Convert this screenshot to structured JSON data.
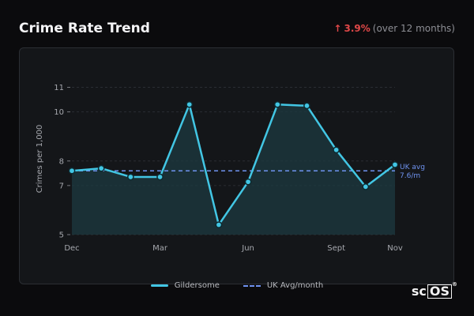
{
  "header": {
    "title": "Crime Rate Trend",
    "change_arrow": "↑",
    "change_value": "3.9%",
    "change_period": "(over 12 months)"
  },
  "brand": {
    "prefix": "sc",
    "boxed": "OS",
    "reg": "®"
  },
  "legend": {
    "series_label": "Gildersome",
    "avg_label": "UK Avg/month"
  },
  "colors": {
    "line": "#42c6e4",
    "area": "#1c3a40",
    "avg": "#6f93f0",
    "grid": "#2a2d33",
    "negative": "#e04848"
  },
  "chart_data": {
    "type": "line",
    "ylabel": "Crimes per 1,000",
    "ylim": [
      5,
      11.5
    ],
    "y_ticks": [
      5,
      7,
      8,
      10,
      11
    ],
    "x_tick_labels": [
      "Dec",
      "Mar",
      "Jun",
      "Sept",
      "Nov"
    ],
    "x_tick_index": [
      0,
      3,
      6,
      9,
      11
    ],
    "points": [
      {
        "x": 0,
        "y": 7.6
      },
      {
        "x": 1,
        "y": 7.7
      },
      {
        "x": 2,
        "y": 7.35
      },
      {
        "x": 3,
        "y": 7.35
      },
      {
        "x": 4,
        "y": 10.3
      },
      {
        "x": 5,
        "y": 5.4
      },
      {
        "x": 6,
        "y": 7.15
      },
      {
        "x": 7,
        "y": 10.3
      },
      {
        "x": 8,
        "y": 10.25
      },
      {
        "x": 9,
        "y": 8.45
      },
      {
        "x": 10,
        "y": 6.95
      },
      {
        "x": 11,
        "y": 7.85
      }
    ],
    "series": [
      {
        "name": "Gildersome"
      }
    ],
    "uk_avg": {
      "value": 7.6,
      "label_line1": "UK avg",
      "label_line2": "7.6/m"
    },
    "grid": true,
    "legend_position": "bottom"
  }
}
